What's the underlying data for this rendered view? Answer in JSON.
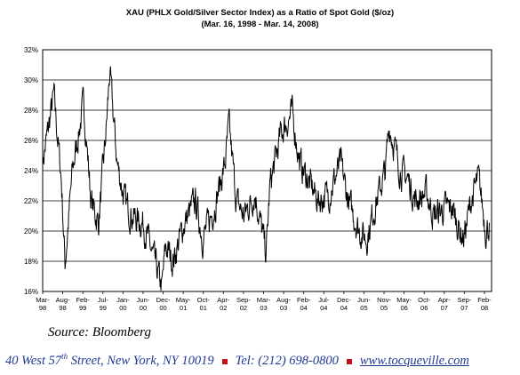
{
  "chart_data": {
    "type": "line",
    "title": "XAU (PHLX Gold/Silver Sector Index) as a Ratio of Spot Gold ($/oz)",
    "subtitle": "(Mar. 16, 1998 - Mar. 14, 2008)",
    "xlabel": "",
    "ylabel": "",
    "ylim": [
      16,
      32
    ],
    "yticks": [
      "16%",
      "18%",
      "20%",
      "22%",
      "24%",
      "26%",
      "28%",
      "30%",
      "32%"
    ],
    "xticks": [
      [
        "Mar-",
        "98"
      ],
      [
        "Aug-",
        "98"
      ],
      [
        "Feb-",
        "99"
      ],
      [
        "Jul-",
        "99"
      ],
      [
        "Jan-",
        "00"
      ],
      [
        "Jun-",
        "00"
      ],
      [
        "Dec-",
        "00"
      ],
      [
        "May-",
        "01"
      ],
      [
        "Oct-",
        "01"
      ],
      [
        "Apr-",
        "02"
      ],
      [
        "Sep-",
        "02"
      ],
      [
        "Mar-",
        "03"
      ],
      [
        "Aug-",
        "03"
      ],
      [
        "Feb-",
        "04"
      ],
      [
        "Jul-",
        "04"
      ],
      [
        "Dec-",
        "04"
      ],
      [
        "Jun-",
        "05"
      ],
      [
        "Nov-",
        "05"
      ],
      [
        "May-",
        "06"
      ],
      [
        "Oct-",
        "06"
      ],
      [
        "Apr-",
        "07"
      ],
      [
        "Sep-",
        "07"
      ],
      [
        "Feb-",
        "08"
      ]
    ],
    "grid": true,
    "legend": "none",
    "line_color": "#000000",
    "x": [
      "1998-03",
      "1998-06",
      "1998-08",
      "1998-09",
      "1998-11",
      "1999-02",
      "1999-04",
      "1999-06",
      "1999-08",
      "1999-09",
      "1999-11",
      "2000-01",
      "2000-03",
      "2000-06",
      "2000-09",
      "2000-11",
      "2000-12",
      "2001-02",
      "2001-05",
      "2001-08",
      "2001-10",
      "2002-01",
      "2002-04",
      "2002-05",
      "2002-07",
      "2002-09",
      "2002-12",
      "2003-03",
      "2003-04",
      "2003-07",
      "2003-10",
      "2003-12",
      "2004-03",
      "2004-05",
      "2004-08",
      "2004-11",
      "2005-01",
      "2005-04",
      "2005-06",
      "2005-08",
      "2005-11",
      "2005-12",
      "2006-03",
      "2006-05",
      "2006-07",
      "2006-10",
      "2006-12",
      "2007-03",
      "2007-05",
      "2007-07",
      "2007-08",
      "2007-10",
      "2007-12",
      "2008-02",
      "2008-03"
    ],
    "values": [
      24.5,
      29.0,
      23.5,
      17.8,
      24.0,
      28.5,
      22.0,
      20.5,
      26.5,
      30.5,
      24.5,
      22.0,
      21.0,
      20.5,
      18.0,
      16.2,
      19.0,
      18.0,
      20.5,
      22.0,
      19.5,
      21.5,
      24.5,
      27.0,
      22.0,
      21.0,
      22.5,
      18.5,
      23.0,
      26.5,
      27.8,
      24.5,
      23.0,
      22.0,
      22.5,
      24.5,
      22.0,
      20.0,
      19.5,
      21.5,
      24.0,
      27.0,
      24.0,
      23.5,
      22.0,
      22.5,
      21.0,
      21.5,
      21.5,
      20.0,
      19.5,
      22.0,
      23.5,
      20.0,
      20.5
    ]
  },
  "footer": {
    "source": "Source: Bloomberg",
    "address_pre": "40 West 57",
    "address_sup": "th",
    "address_post": " Street, New York, NY 10019",
    "tel": "Tel: (212) 698-0800",
    "url": "www.tocqueville.com",
    "bullet_color": "#c0141c",
    "text_color": "#1f3a93"
  }
}
